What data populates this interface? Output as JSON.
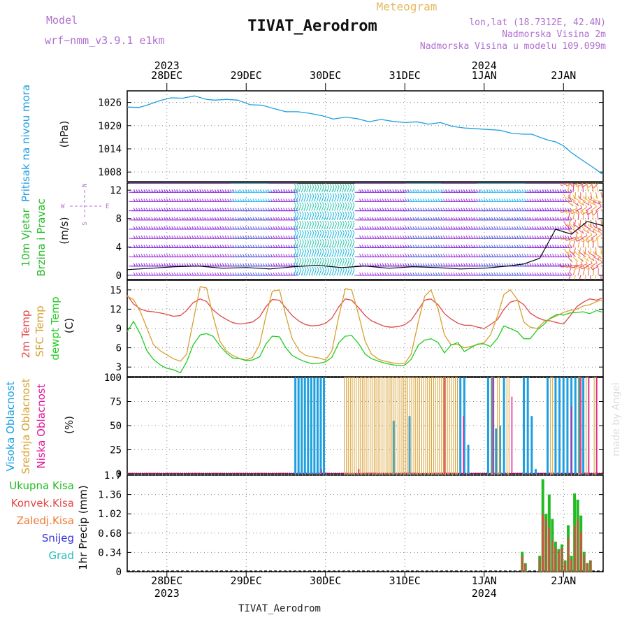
{
  "header": {
    "model_label": "Model",
    "model_name": "wrf−nmm_v3.9.1  e1km",
    "title": "TIVAT_Aerodrom",
    "subtitle": "Meteogram",
    "lonlat": "lon,lat (18.7312E, 42.4N)",
    "altitude": "Nadmorska Visina 2m",
    "model_altitude": "Nadmorska Visina u modelu 109.099m"
  },
  "footer": {
    "station": "TIVAT_Aerodrom",
    "credit": "made by Angel"
  },
  "colors": {
    "pressure": "#1e9fe0",
    "wind_title": "#22bb22",
    "temp2m": "#e04848",
    "sfc": "#d8a030",
    "dewpt": "#22cc22",
    "high_cloud": "#1e9fe0",
    "mid_cloud": "#d8a030",
    "low_cloud": "#e0189a",
    "total_precip": "#22bb22",
    "conv_precip": "#e04848",
    "frozen_precip": "#f07830",
    "snow": "#3333dd",
    "hail": "#22bbbb",
    "compass": "#b070d0",
    "credit": "#dddddd",
    "subtitle": "#e8b860"
  },
  "chart_data": [
    {
      "type": "line",
      "title": "",
      "ylabel": "Pritisak na nivou mora",
      "unit": "(hPa)",
      "ylim": [
        1005.5,
        1029
      ],
      "yticks": [
        1026,
        1020,
        1014,
        1008
      ],
      "x_top": {
        "year_labels": [
          {
            "x": 0.5,
            "label": "2023"
          },
          {
            "x": 4.5,
            "label": "2024"
          }
        ],
        "day_labels": [
          {
            "x": 0.5,
            "label": "28DEC"
          },
          {
            "x": 1.5,
            "label": "29DEC"
          },
          {
            "x": 2.5,
            "label": "30DEC"
          },
          {
            "x": 3.5,
            "label": "31DEC"
          },
          {
            "x": 4.5,
            "label": "1JAN"
          },
          {
            "x": 5.5,
            "label": "2JAN"
          }
        ]
      },
      "series": [
        {
          "x": [
            0,
            0.15,
            0.25,
            0.4,
            0.55,
            0.7,
            0.85,
            1.0,
            1.1,
            1.25,
            1.4,
            1.55,
            1.7,
            1.85,
            2.0,
            2.15,
            2.3,
            2.45,
            2.6,
            2.75,
            2.9,
            3.05,
            3.2,
            3.35,
            3.5,
            3.65,
            3.8,
            3.95,
            4.1,
            4.25,
            4.4,
            4.55,
            4.7,
            4.85,
            5.0,
            5.1,
            5.2,
            5.3,
            5.4,
            5.5,
            5.6,
            5.7,
            5.8,
            5.9,
            6.0
          ],
          "values": [
            1024.8,
            1024.7,
            1025.3,
            1026.4,
            1027.2,
            1027.1,
            1027.7,
            1026.8,
            1026.6,
            1026.8,
            1026.6,
            1025.4,
            1025.3,
            1024.4,
            1023.6,
            1023.6,
            1023.2,
            1022.6,
            1021.7,
            1022.2,
            1021.8,
            1021.0,
            1021.6,
            1021.1,
            1020.8,
            1021.0,
            1020.4,
            1020.8,
            1019.8,
            1019.4,
            1019.2,
            1019.0,
            1018.8,
            1018.0,
            1017.8,
            1017.8,
            1017.0,
            1016.3,
            1015.8,
            1014.8,
            1013.0,
            1011.6,
            1010.2,
            1008.8,
            1007.3
          ]
        }
      ]
    },
    {
      "type": "line",
      "title": "",
      "ylabel": "10m Vjetar",
      "ylabel2": "Brzina i Pravac",
      "unit": "(m/s)",
      "ylim": [
        -0.6,
        13
      ],
      "yticks": [
        12,
        8,
        4,
        0
      ],
      "compass": {
        "n": "N",
        "s": "S",
        "e": "E",
        "w": "W"
      },
      "barb_rows": [
        0,
        1.3,
        2.6,
        3.9,
        5.2,
        6.5,
        7.8,
        9.1,
        10.4,
        11.7,
        13
      ],
      "series": [
        {
          "name": "wind speed",
          "x": [
            0,
            0.3,
            0.6,
            0.9,
            1.2,
            1.5,
            1.8,
            2.1,
            2.4,
            2.7,
            3.0,
            3.3,
            3.6,
            3.9,
            4.2,
            4.5,
            4.8,
            5.0,
            5.2,
            5.4,
            5.6,
            5.8,
            6.0
          ],
          "values": [
            0.8,
            1.0,
            1.2,
            1.3,
            1.0,
            1.1,
            0.9,
            1.2,
            1.4,
            1.1,
            1.3,
            1.0,
            1.2,
            1.1,
            0.9,
            1.0,
            1.3,
            1.6,
            2.4,
            6.5,
            5.8,
            7.6,
            7.0
          ]
        }
      ]
    },
    {
      "type": "line",
      "title": "",
      "ylabel": "2m Temp",
      "ylabel2": "SFC Temp",
      "ylabel3": "dewpt Temp",
      "unit": "(C)",
      "ylim": [
        1.5,
        16.5
      ],
      "yticks": [
        15,
        12,
        9,
        6,
        3
      ],
      "x": [
        0,
        0.08,
        0.17,
        0.25,
        0.33,
        0.42,
        0.5,
        0.58,
        0.67,
        0.75,
        0.83,
        0.92,
        1.0,
        1.08,
        1.17,
        1.25,
        1.33,
        1.42,
        1.5,
        1.58,
        1.67,
        1.75,
        1.83,
        1.92,
        2.0,
        2.08,
        2.17,
        2.25,
        2.33,
        2.42,
        2.5,
        2.58,
        2.67,
        2.75,
        2.83,
        2.92,
        3.0,
        3.08,
        3.17,
        3.25,
        3.33,
        3.42,
        3.5,
        3.58,
        3.67,
        3.75,
        3.83,
        3.92,
        4.0,
        4.08,
        4.17,
        4.25,
        4.33,
        4.42,
        4.5,
        4.58,
        4.67,
        4.75,
        4.83,
        4.92,
        5.0,
        5.08,
        5.17,
        5.25,
        5.33,
        5.42,
        5.5,
        5.58,
        5.67,
        5.75,
        5.83,
        5.92,
        6.0
      ],
      "series": [
        {
          "name": "2m Temp",
          "values": [
            14.2,
            12.8,
            12.0,
            11.7,
            11.6,
            11.4,
            11.2,
            10.9,
            11.0,
            11.8,
            13.0,
            13.6,
            13.2,
            11.9,
            11.0,
            10.4,
            9.9,
            9.7,
            9.8,
            10.0,
            10.8,
            12.4,
            13.5,
            13.4,
            12.2,
            11.0,
            10.1,
            9.6,
            9.4,
            9.5,
            9.8,
            10.6,
            12.4,
            13.6,
            13.4,
            12.2,
            11.0,
            10.2,
            9.7,
            9.3,
            9.2,
            9.3,
            9.6,
            10.3,
            11.9,
            13.4,
            13.6,
            12.7,
            11.3,
            10.5,
            9.8,
            9.5,
            9.5,
            9.2,
            9.0,
            9.6,
            10.4,
            12.0,
            13.1,
            13.4,
            12.7,
            11.4,
            10.7,
            10.3,
            10.2,
            9.9,
            9.7,
            10.9,
            12.4,
            13.1,
            13.6,
            13.4,
            13.8
          ]
        },
        {
          "name": "SFC Temp",
          "values": [
            14.0,
            13.5,
            11.5,
            9.0,
            6.5,
            5.5,
            4.9,
            4.3,
            3.9,
            5.0,
            10.0,
            15.5,
            15.3,
            11.0,
            7.0,
            5.5,
            4.8,
            4.3,
            4.1,
            4.5,
            6.5,
            11.0,
            14.8,
            15.0,
            11.0,
            7.4,
            5.5,
            4.8,
            4.6,
            4.4,
            4.1,
            5.5,
            11.0,
            15.2,
            15.0,
            11.0,
            7.0,
            5.0,
            4.2,
            3.9,
            3.7,
            3.5,
            3.6,
            5.0,
            10.0,
            14.0,
            15.0,
            12.0,
            8.0,
            6.5,
            6.5,
            6.0,
            6.2,
            6.5,
            6.8,
            8.0,
            11.0,
            14.3,
            15.0,
            13.5,
            10.0,
            9.2,
            9.0,
            10.0,
            10.5,
            11.0,
            11.5,
            11.8,
            12.0,
            12.5,
            12.7,
            13.2,
            13.5
          ]
        },
        {
          "name": "dewpt Temp",
          "values": [
            8.5,
            10.1,
            8.0,
            5.5,
            4.2,
            3.3,
            2.8,
            2.6,
            2.1,
            3.8,
            6.4,
            8.0,
            8.2,
            7.8,
            6.3,
            5.2,
            4.4,
            4.3,
            4.0,
            4.1,
            4.6,
            6.6,
            7.8,
            7.7,
            6.0,
            4.8,
            4.2,
            3.8,
            3.5,
            3.6,
            3.8,
            4.5,
            6.8,
            7.8,
            7.9,
            6.6,
            5.0,
            4.3,
            3.9,
            3.6,
            3.4,
            3.2,
            3.3,
            4.2,
            6.4,
            7.2,
            7.4,
            6.8,
            5.2,
            6.4,
            6.8,
            5.4,
            6.0,
            6.6,
            6.6,
            6.2,
            7.5,
            9.4,
            9.0,
            8.5,
            7.4,
            7.4,
            8.8,
            9.6,
            10.6,
            11.2,
            11.1,
            11.4,
            11.5,
            11.6,
            11.3,
            11.8,
            11.5
          ]
        }
      ]
    },
    {
      "type": "bar",
      "title": "",
      "ylabel": "Visoka Oblacnost",
      "ylabel2": "Srednja Oblacnost",
      "ylabel3": "Niska Oblacnost",
      "unit": "(%)",
      "ylim": [
        0,
        100
      ],
      "yticks": [
        100,
        75,
        50,
        25,
        0
      ],
      "series": [
        {
          "name": "Visoka Oblacnost",
          "x": [
            2.12,
            2.16,
            2.2,
            2.24,
            2.28,
            2.32,
            2.36,
            2.4,
            2.44,
            2.48,
            3.36,
            3.56,
            4.2,
            4.25,
            4.3,
            4.55,
            4.6,
            4.65,
            4.7,
            4.75,
            5.0,
            5.05,
            5.1,
            5.15,
            5.3,
            5.4,
            5.45,
            5.5,
            5.55,
            5.6,
            5.65,
            5.7,
            5.75
          ],
          "values": [
            100,
            100,
            100,
            100,
            100,
            100,
            100,
            100,
            100,
            100,
            55,
            60,
            100,
            100,
            30,
            100,
            100,
            47,
            50,
            100,
            100,
            100,
            60,
            5,
            100,
            100,
            100,
            100,
            100,
            100,
            100,
            100,
            100
          ]
        },
        {
          "name": "Srednja Oblacnost",
          "x": [
            2.75,
            2.8,
            2.85,
            2.9,
            2.95,
            3.0,
            3.05,
            3.1,
            3.15,
            3.2,
            3.25,
            3.3,
            3.35,
            3.4,
            3.45,
            3.5,
            3.55,
            3.6,
            3.65,
            3.7,
            3.75,
            3.8,
            3.85,
            3.9,
            3.95,
            4.0,
            4.05,
            4.1,
            4.15,
            4.6,
            4.68,
            4.8,
            5.35,
            5.7,
            5.8,
            5.9
          ],
          "values": [
            100,
            100,
            100,
            100,
            100,
            100,
            100,
            100,
            100,
            100,
            100,
            100,
            100,
            100,
            100,
            100,
            100,
            100,
            100,
            100,
            100,
            100,
            100,
            100,
            100,
            100,
            100,
            100,
            100,
            100,
            100,
            100,
            100,
            100,
            100,
            100
          ]
        },
        {
          "name": "Niska Oblacnost",
          "x": [
            2.45,
            2.92,
            4.0,
            4.24,
            4.62,
            4.85,
            5.6,
            5.72,
            5.82,
            5.92
          ],
          "values": [
            5,
            5,
            100,
            60,
            100,
            80,
            70,
            100,
            100,
            100
          ]
        }
      ]
    },
    {
      "type": "bar",
      "title": "",
      "ylabel": "1hr Precip (mm)",
      "legend": [
        "Ukupna Kisa",
        "Konvek.Kisa",
        "Zaledj.Kisa",
        "Snijeg",
        "Grad"
      ],
      "ylim": [
        0,
        1.7
      ],
      "yticks": [
        1.7,
        1.36,
        1.02,
        0.68,
        0.34,
        0
      ],
      "x_bottom": {
        "day_labels": [
          {
            "x": 0.5,
            "label": "28DEC"
          },
          {
            "x": 1.5,
            "label": "29DEC"
          },
          {
            "x": 2.5,
            "label": "30DEC"
          },
          {
            "x": 3.5,
            "label": "31DEC"
          },
          {
            "x": 4.5,
            "label": "1JAN"
          },
          {
            "x": 5.5,
            "label": "2JAN"
          }
        ],
        "year_labels": [
          {
            "x": 0.5,
            "label": "2023"
          },
          {
            "x": 4.5,
            "label": "2024"
          }
        ]
      },
      "series": [
        {
          "name": "Ukupna Kisa",
          "x": [
            4.98,
            5.02,
            5.2,
            5.24,
            5.28,
            5.32,
            5.36,
            5.4,
            5.44,
            5.48,
            5.52,
            5.56,
            5.6,
            5.64,
            5.68,
            5.72,
            5.76,
            5.8,
            5.84
          ],
          "values": [
            0.35,
            0.15,
            0.28,
            1.63,
            1.02,
            1.36,
            0.93,
            0.53,
            0.4,
            0.48,
            0.2,
            0.82,
            0.28,
            1.38,
            1.27,
            0.99,
            0.35,
            0.15,
            0.2
          ]
        },
        {
          "name": "Konvek.Kisa",
          "x": [
            4.98,
            5.02,
            5.2,
            5.24,
            5.28,
            5.32,
            5.36,
            5.4,
            5.44,
            5.48,
            5.52,
            5.56,
            5.6,
            5.64,
            5.68,
            5.72,
            5.76,
            5.8,
            5.84
          ],
          "values": [
            0.28,
            0.13,
            0.24,
            1.02,
            0.92,
            0.78,
            0.55,
            0.42,
            0.36,
            0.42,
            0.17,
            0.6,
            0.22,
            0.8,
            0.92,
            0.7,
            0.3,
            0.15,
            0.2
          ]
        }
      ]
    }
  ]
}
